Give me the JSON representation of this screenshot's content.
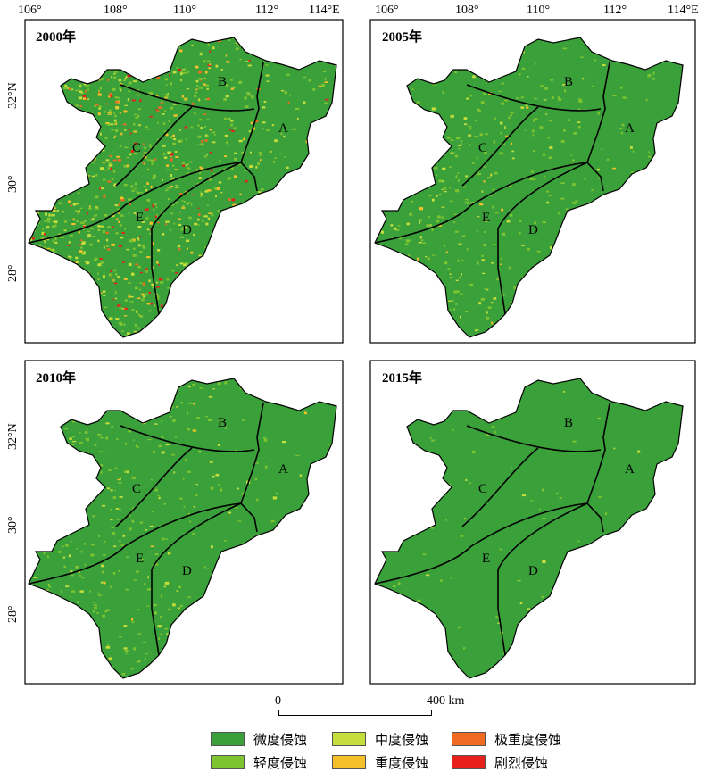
{
  "panels": [
    {
      "year": "2000年",
      "intensity": 1.0
    },
    {
      "year": "2005年",
      "intensity": 0.35
    },
    {
      "year": "2010年",
      "intensity": 0.3
    },
    {
      "year": "2015年",
      "intensity": 0.03
    }
  ],
  "zones": [
    "A",
    "B",
    "C",
    "D",
    "E"
  ],
  "axis": {
    "lon_ticks": [
      "106°",
      "108°",
      "110°",
      "112°",
      "114°E"
    ],
    "lat_ticks": [
      "32°N",
      "30°",
      "28°"
    ]
  },
  "scale_bar": {
    "start": "0",
    "end": "400 km"
  },
  "legend": [
    {
      "label": "微度侵蚀",
      "color": "#3aa03a"
    },
    {
      "label": "轻度侵蚀",
      "color": "#7cc431"
    },
    {
      "label": "中度侵蚀",
      "color": "#c6de3c"
    },
    {
      "label": "重度侵蚀",
      "color": "#f5c02a"
    },
    {
      "label": "极重度侵蚀",
      "color": "#f06a22"
    },
    {
      "label": "剧烈侵蚀",
      "color": "#e8201c"
    }
  ]
}
